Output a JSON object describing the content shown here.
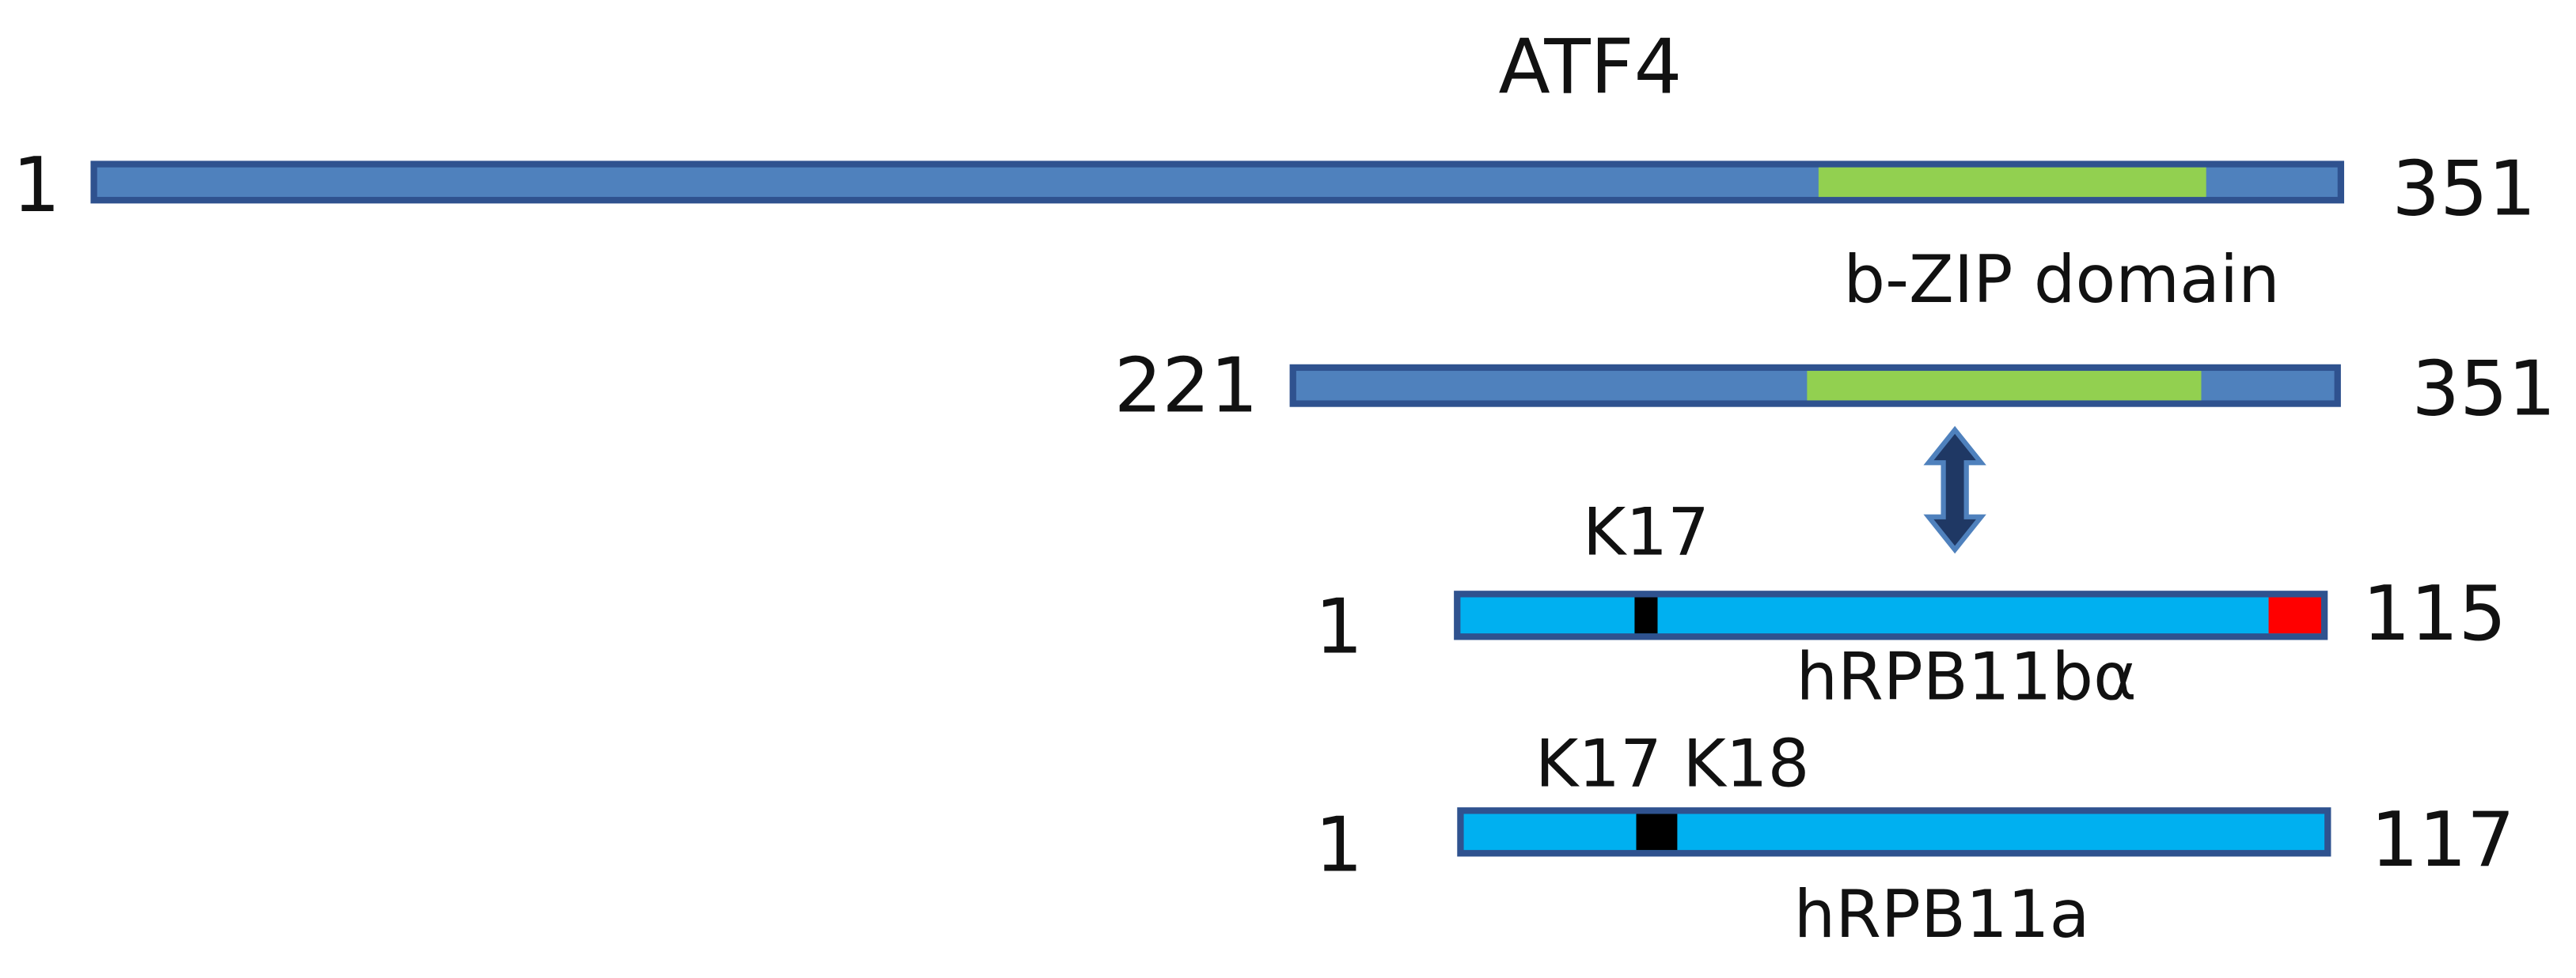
{
  "title": "ATF4",
  "atf4_full": {
    "start": "1",
    "end": "351",
    "domain_label": "b-ZIP domain"
  },
  "atf4_fragment": {
    "start": "221",
    "end": "351"
  },
  "hrpb11ba": {
    "start": "1",
    "end": "115",
    "site_label": "K17",
    "name": "hRPB11bα"
  },
  "hrpb11a": {
    "start": "1",
    "end": "117",
    "site_label": "K17 K18",
    "name": "hRPB11a"
  }
}
